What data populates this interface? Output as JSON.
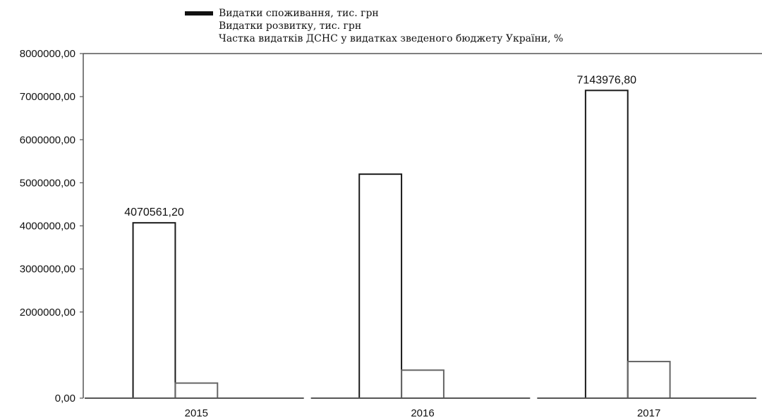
{
  "chart_data": {
    "type": "bar",
    "categories": [
      "2015",
      "2016",
      "2017"
    ],
    "series": [
      {
        "name": "Видатки споживання, тис. грн",
        "values": [
          4070561.2,
          5200000,
          7143976.8
        ],
        "data_labels": [
          "4070561,20",
          "",
          "7143976,80"
        ],
        "color": "#1a1a1a"
      },
      {
        "name": "Видатки розвитку, тис. грн",
        "values": [
          350000,
          650000,
          850000
        ],
        "color": "#666666"
      },
      {
        "name": "Частка видатків ДСНС у видатках зведеного бюджету України, %",
        "values": [
          0,
          0,
          0
        ],
        "color": "#555555"
      }
    ],
    "y_tick_labels": [
      "0,00",
      "2000000,00",
      "3000000,00",
      "4000000,00",
      "5000000,00",
      "6000000,00",
      "7000000,00",
      "8000000,00"
    ],
    "y_tick_values": [
      0,
      2000000,
      3000000,
      4000000,
      5000000,
      6000000,
      7000000,
      8000000
    ],
    "ylim": [
      0,
      8000000
    ],
    "legend_position": "top",
    "grid": false
  }
}
